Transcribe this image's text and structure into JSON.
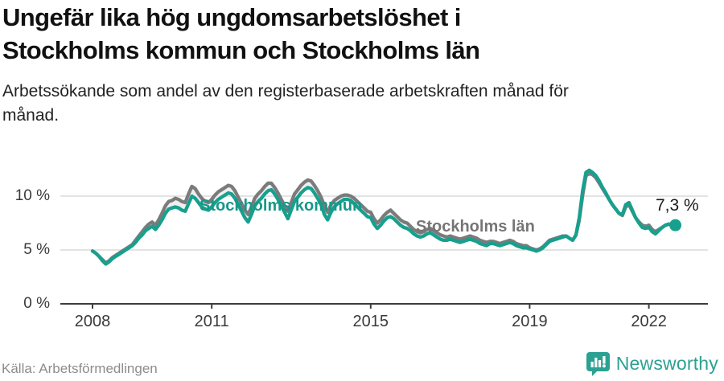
{
  "title": "Ungefär lika hög ungdomsarbetslöshet i Stockholms kommun och Stockholms län",
  "subtitle": "Arbetssökande som andel av den registerbaserade arbetskraften månad för månad.",
  "source": "Källa: Arbetsförmedlingen",
  "brand": {
    "name": "Newsworthy",
    "color": "#2BA193"
  },
  "chart_data": {
    "type": "line",
    "title": "Ungefär lika hög ungdomsarbetslöshet i Stockholms kommun och Stockholms län",
    "xlabel": "",
    "ylabel": "Arbetssökande som andel av den registerbaserade arbetskraften",
    "x_unit": "month",
    "x_start_year": 2008,
    "x_end": "2022-09",
    "ylim": [
      0,
      13.5
    ],
    "grid": "horizontal",
    "legend_position": "inline-labels",
    "x_ticks": [
      {
        "year": 2008,
        "label": "2008"
      },
      {
        "year": 2011,
        "label": "2011"
      },
      {
        "year": 2015,
        "label": "2015"
      },
      {
        "year": 2019,
        "label": "2019"
      },
      {
        "year": 2022,
        "label": "2022"
      }
    ],
    "y_ticks": [
      {
        "value": 0,
        "label": "0 %"
      },
      {
        "value": 5,
        "label": "5 %"
      },
      {
        "value": 10,
        "label": "10 %"
      }
    ],
    "end_label": {
      "text": "7,3 %",
      "series": "Stockholms kommun",
      "value": 7.3
    },
    "colors": {
      "kommun": "#17A08E",
      "lan": "#7B7B7B",
      "fill_between": "#ECECEC",
      "gridline": "#DADADA",
      "axis": "#3D3D3D"
    },
    "series": [
      {
        "name": "Stockholms kommun",
        "color": "#17A08E",
        "values": [
          4.9,
          4.7,
          4.4,
          4.0,
          3.7,
          3.9,
          4.2,
          4.4,
          4.6,
          4.8,
          5.0,
          5.2,
          5.4,
          5.7,
          6.1,
          6.4,
          6.8,
          7.0,
          7.2,
          6.9,
          7.3,
          7.8,
          8.4,
          8.8,
          8.9,
          9.0,
          8.9,
          8.7,
          8.6,
          9.3,
          10.0,
          9.8,
          9.4,
          9.0,
          8.8,
          8.7,
          9.0,
          9.4,
          9.7,
          9.9,
          10.1,
          10.3,
          10.2,
          9.8,
          9.2,
          8.6,
          8.0,
          7.6,
          8.3,
          9.1,
          9.5,
          9.8,
          10.2,
          10.5,
          10.6,
          10.2,
          9.7,
          9.1,
          8.5,
          7.9,
          8.7,
          9.5,
          9.9,
          10.3,
          10.6,
          10.8,
          10.7,
          10.3,
          9.8,
          9.2,
          8.3,
          7.8,
          8.5,
          9.0,
          9.3,
          9.5,
          9.7,
          9.7,
          9.6,
          9.3,
          9.0,
          8.7,
          8.4,
          8.1,
          8.0,
          7.4,
          7.0,
          7.3,
          7.7,
          8.0,
          8.1,
          7.9,
          7.6,
          7.3,
          7.1,
          7.0,
          6.8,
          6.5,
          6.3,
          6.2,
          6.3,
          6.5,
          6.6,
          6.4,
          6.2,
          6.0,
          5.9,
          5.9,
          6.0,
          5.9,
          5.8,
          5.7,
          5.8,
          5.9,
          6.0,
          5.9,
          5.8,
          5.6,
          5.5,
          5.4,
          5.6,
          5.6,
          5.5,
          5.4,
          5.5,
          5.6,
          5.7,
          5.6,
          5.4,
          5.3,
          5.2,
          5.2,
          5.1,
          5.0,
          4.9,
          5.0,
          5.2,
          5.5,
          5.8,
          5.9,
          6.0,
          6.1,
          6.2,
          6.3,
          6.1,
          5.9,
          6.4,
          8.0,
          10.5,
          12.2,
          12.4,
          12.2,
          11.9,
          11.4,
          10.8,
          10.3,
          9.7,
          9.2,
          8.8,
          8.4,
          8.3,
          9.2,
          9.4,
          8.7,
          8.0,
          7.5,
          7.1,
          7.0,
          7.1,
          6.7,
          6.5,
          6.8,
          7.1,
          7.3,
          7.4,
          7.3,
          7.3
        ]
      },
      {
        "name": "Stockholms län",
        "color": "#7B7B7B",
        "values": [
          4.9,
          4.7,
          4.4,
          4.1,
          3.8,
          4.0,
          4.3,
          4.5,
          4.7,
          4.9,
          5.1,
          5.3,
          5.5,
          5.9,
          6.3,
          6.7,
          7.1,
          7.4,
          7.6,
          7.3,
          7.8,
          8.4,
          9.1,
          9.5,
          9.6,
          9.8,
          9.7,
          9.5,
          9.4,
          10.2,
          10.9,
          10.7,
          10.2,
          9.8,
          9.5,
          9.4,
          9.7,
          10.1,
          10.4,
          10.6,
          10.8,
          11.0,
          10.9,
          10.5,
          9.9,
          9.3,
          8.7,
          8.3,
          9.0,
          9.8,
          10.2,
          10.5,
          10.9,
          11.2,
          11.2,
          10.8,
          10.3,
          9.7,
          9.1,
          8.6,
          9.4,
          10.2,
          10.6,
          11.0,
          11.3,
          11.5,
          11.4,
          11.0,
          10.5,
          9.9,
          9.1,
          8.5,
          9.2,
          9.6,
          9.8,
          10.0,
          10.1,
          10.1,
          10.0,
          9.8,
          9.5,
          9.2,
          8.9,
          8.6,
          8.5,
          7.9,
          7.5,
          7.8,
          8.2,
          8.5,
          8.7,
          8.4,
          8.1,
          7.8,
          7.6,
          7.5,
          7.2,
          6.9,
          6.7,
          6.6,
          6.7,
          6.9,
          7.0,
          6.8,
          6.6,
          6.4,
          6.3,
          6.2,
          6.3,
          6.2,
          6.1,
          6.0,
          6.1,
          6.2,
          6.3,
          6.2,
          6.1,
          5.9,
          5.8,
          5.7,
          5.8,
          5.8,
          5.7,
          5.6,
          5.7,
          5.8,
          5.9,
          5.8,
          5.6,
          5.5,
          5.4,
          5.4,
          5.2,
          5.1,
          5.0,
          5.1,
          5.3,
          5.6,
          5.9,
          6.0,
          6.1,
          6.2,
          6.3,
          6.3,
          6.1,
          5.9,
          6.4,
          7.8,
          10.1,
          11.9,
          12.1,
          12.0,
          11.7,
          11.2,
          10.7,
          10.2,
          9.7,
          9.2,
          8.8,
          8.4,
          8.2,
          9.0,
          9.2,
          8.6,
          8.0,
          7.6,
          7.3,
          7.2,
          7.3,
          6.9,
          6.7,
          6.9,
          7.1,
          7.3,
          7.4,
          7.3,
          7.2
        ]
      }
    ]
  }
}
